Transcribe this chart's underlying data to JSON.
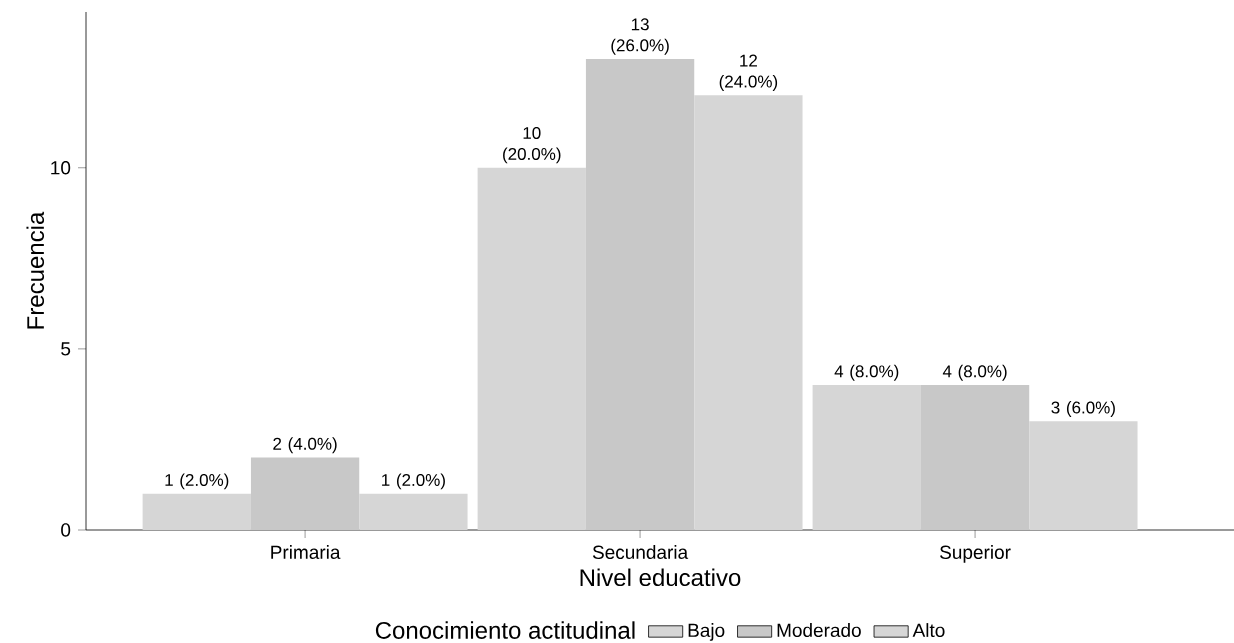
{
  "chart_data": {
    "type": "bar",
    "xlabel": "Nivel educativo",
    "ylabel": "Frecuencia",
    "legend_title": "Conocimiento actitudinal",
    "categories": [
      "Primaria",
      "Secundaria",
      "Superior"
    ],
    "series": [
      {
        "name": "Bajo",
        "color": "#d6d6d6",
        "values": [
          1,
          10,
          4
        ],
        "value_labels": [
          "1 (2.0%)",
          "10 (20.0%)",
          "4 (8.0%)"
        ]
      },
      {
        "name": "Moderado",
        "color": "#c8c8c8",
        "values": [
          2,
          13,
          4
        ],
        "value_labels": [
          "2 (4.0%)",
          "13 (26.0%)",
          "4 (8.0%)"
        ]
      },
      {
        "name": "Alto",
        "color": "#d6d6d6",
        "values": [
          1,
          12,
          3
        ],
        "value_labels": [
          "1 (2.0%)",
          "12 (24.0%)",
          "3 (6.0%)"
        ]
      }
    ],
    "ylim": [
      0,
      14.3
    ],
    "yticks": [
      0,
      5,
      10
    ],
    "grid": false,
    "legend": "bottom"
  }
}
